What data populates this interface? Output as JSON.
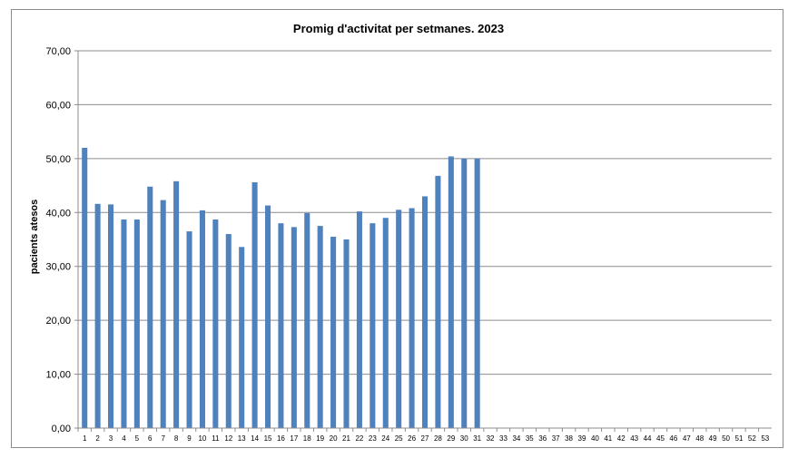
{
  "chart_data": {
    "type": "bar",
    "title": "Promig  d'activitat per setmanes. 2023",
    "xlabel": "",
    "ylabel": "pacients atesos",
    "ylim": [
      0,
      70
    ],
    "yticks": [
      "0,00",
      "10,00",
      "20,00",
      "30,00",
      "40,00",
      "50,00",
      "60,00",
      "70,00"
    ],
    "grid": true,
    "legend": "none",
    "bar_color": "#4f81bd",
    "categories": [
      "1",
      "2",
      "3",
      "4",
      "5",
      "6",
      "7",
      "8",
      "9",
      "10",
      "11",
      "12",
      "13",
      "14",
      "15",
      "16",
      "17",
      "18",
      "19",
      "20",
      "21",
      "22",
      "23",
      "24",
      "25",
      "26",
      "27",
      "28",
      "29",
      "30",
      "31",
      "32",
      "33",
      "34",
      "35",
      "36",
      "37",
      "38",
      "39",
      "40",
      "41",
      "42",
      "43",
      "44",
      "45",
      "46",
      "47",
      "48",
      "49",
      "50",
      "51",
      "52",
      "53"
    ],
    "values": [
      52.0,
      41.6,
      41.5,
      38.7,
      38.7,
      44.8,
      42.3,
      45.8,
      36.5,
      40.4,
      38.7,
      36.0,
      33.6,
      45.6,
      41.3,
      38.0,
      37.3,
      39.9,
      37.5,
      35.5,
      35.0,
      40.2,
      38.0,
      39.0,
      40.5,
      40.8,
      43.0,
      46.8,
      50.4,
      50.0,
      50.0,
      null,
      null,
      null,
      null,
      null,
      null,
      null,
      null,
      null,
      null,
      null,
      null,
      null,
      null,
      null,
      null,
      null,
      null,
      null,
      null,
      null,
      null
    ]
  }
}
